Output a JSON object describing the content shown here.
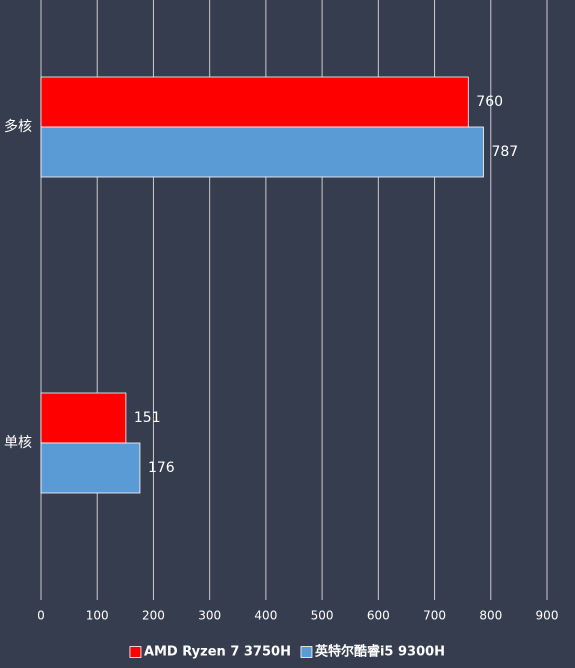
{
  "chart_data": {
    "type": "hbar",
    "categories": [
      "多核",
      "单核"
    ],
    "series": [
      {
        "name": "AMD Ryzen 7 3750H",
        "color": "#ff0000",
        "values": [
          760,
          151
        ]
      },
      {
        "name": "英特尔酷睿i5 9300H",
        "color": "#5b9bd5",
        "values": [
          787,
          176
        ]
      }
    ],
    "xlim": [
      0,
      900
    ],
    "xticks": [
      0,
      100,
      200,
      300,
      400,
      500,
      600,
      700,
      800,
      900
    ],
    "grid": true,
    "legend": "bottom"
  }
}
